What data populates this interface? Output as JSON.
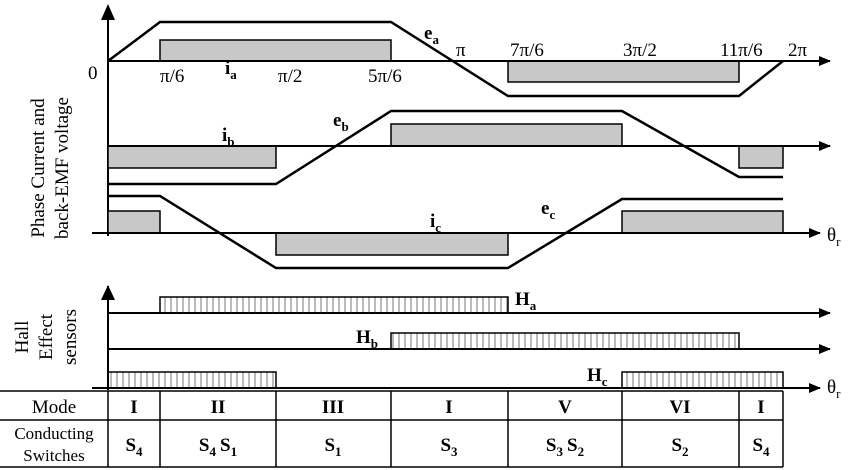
{
  "axis_labels": {
    "y_upper_line1": "Phase Current and",
    "y_upper_line2": "back-EMF voltage",
    "y_lower_line1": "Hall",
    "y_lower_line2": "Effect",
    "y_lower_line3": "sensors",
    "theta_main": "θ",
    "theta_main_sub": "r",
    "theta_hall": "θ",
    "theta_hall_sub": "r"
  },
  "angle_ticks": {
    "zero": "0",
    "pi6": "π/6",
    "pi2": "π/2",
    "fivepi6": "5π/6",
    "pi": "π",
    "sevenpi6": "7π/6",
    "threepi2": "3π/2",
    "elevenpi6": "11π/6",
    "twopi": "2π"
  },
  "signals": {
    "ea": "e",
    "ea_sub": "a",
    "eb": "e",
    "eb_sub": "b",
    "ec": "e",
    "ec_sub": "c",
    "ia": "i",
    "ia_sub": "a",
    "ib": "i",
    "ib_sub": "b",
    "ic": "i",
    "ic_sub": "c",
    "ha": "H",
    "ha_sub": "a",
    "hb": "H",
    "hb_sub": "b",
    "hc": "H",
    "hc_sub": "c"
  },
  "table": {
    "mode_label": "Mode",
    "switch_label_line1": "Conducting",
    "switch_label_line2": "Switches",
    "modes": [
      "I",
      "II",
      "III",
      "I",
      "V",
      "VI",
      "I"
    ],
    "switches": [
      {
        "a": "S",
        "a_sub": "4",
        "b": "",
        "b_sub": ""
      },
      {
        "a": "S",
        "a_sub": "4",
        "b": "S",
        "b_sub": "1"
      },
      {
        "a": "S",
        "a_sub": "1",
        "b": "",
        "b_sub": ""
      },
      {
        "a": "S",
        "a_sub": "3",
        "b": "",
        "b_sub": ""
      },
      {
        "a": "S",
        "a_sub": "3",
        "b": "S",
        "b_sub": "2"
      },
      {
        "a": "S",
        "a_sub": "2",
        "b": "",
        "b_sub": ""
      },
      {
        "a": "S",
        "a_sub": "4",
        "b": "",
        "b_sub": ""
      }
    ]
  }
}
